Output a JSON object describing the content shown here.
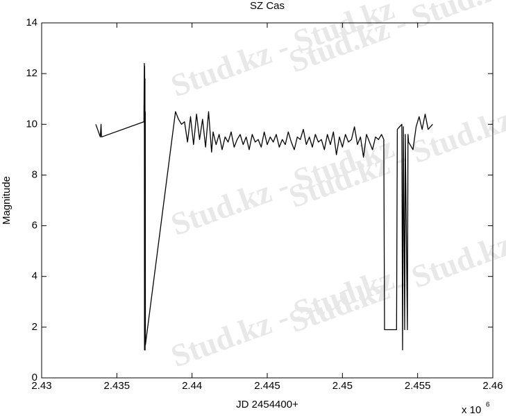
{
  "chart_data": {
    "type": "line",
    "title": "SZ Cas",
    "x_label": "JD 2454400+",
    "y_label": "Magnitude",
    "x_offset_label": "x 10",
    "x_offset_exponent": "6",
    "watermark": "Stud.kz - Stud.kz",
    "xlim": [
      2430000,
      2460000
    ],
    "xticks": [
      {
        "value": 2430000,
        "label": "2.43"
      },
      {
        "value": 2435000,
        "label": "2.435"
      },
      {
        "value": 2440000,
        "label": "2.44"
      },
      {
        "value": 2445000,
        "label": "2.445"
      },
      {
        "value": 2450000,
        "label": "2.45"
      },
      {
        "value": 2455000,
        "label": "2.455"
      },
      {
        "value": 2460000,
        "label": "2.46"
      }
    ],
    "ylim": [
      0,
      14
    ],
    "yticks": [
      0,
      2,
      4,
      6,
      8,
      10,
      12,
      14
    ],
    "grid": false,
    "x": [
      2433600,
      2433900,
      2433950,
      2433980,
      2436800,
      2436830,
      2436840,
      2436850,
      2436860,
      2436870,
      2436880,
      2436890,
      2436900,
      2438900,
      2439100,
      2439300,
      2439500,
      2439700,
      2439900,
      2440100,
      2440300,
      2440500,
      2440700,
      2440900,
      2441100,
      2441300,
      2441400,
      2441600,
      2441800,
      2442000,
      2442200,
      2442400,
      2442600,
      2442800,
      2443000,
      2443200,
      2443400,
      2443600,
      2443800,
      2444000,
      2444200,
      2444400,
      2444600,
      2444800,
      2445000,
      2445200,
      2445400,
      2445600,
      2445800,
      2446000,
      2446200,
      2446400,
      2446600,
      2446800,
      2447000,
      2447200,
      2447400,
      2447600,
      2447800,
      2448000,
      2448200,
      2448400,
      2448600,
      2448800,
      2449000,
      2449200,
      2449400,
      2449600,
      2449800,
      2450000,
      2450200,
      2450400,
      2450600,
      2450800,
      2451000,
      2451200,
      2451400,
      2451600,
      2451800,
      2452000,
      2452200,
      2452400,
      2452600,
      2452750,
      2452800,
      2453600,
      2453650,
      2453950,
      2454000,
      2454050,
      2454140,
      2454180,
      2454320,
      2454360,
      2454400,
      2454690,
      2454900,
      2455100,
      2455300,
      2455500,
      2455700,
      2456000
    ],
    "series": [
      {
        "name": "SZ Cas",
        "color": "#000000",
        "values": [
          10.0,
          9.5,
          10.0,
          9.5,
          10.1,
          12.4,
          1.1,
          12.3,
          1.2,
          11.8,
          1.1,
          10.5,
          1.3,
          10.5,
          10.2,
          10.0,
          10.1,
          9.3,
          10.3,
          9.2,
          10.4,
          9.4,
          10.2,
          9.1,
          10.5,
          8.9,
          9.7,
          9.2,
          9.6,
          9.0,
          9.5,
          9.3,
          9.7,
          9.1,
          9.4,
          9.6,
          9.2,
          9.5,
          9.0,
          9.6,
          9.3,
          9.4,
          9.1,
          9.7,
          9.2,
          9.5,
          9.3,
          9.6,
          9.1,
          9.4,
          9.2,
          9.7,
          9.3,
          9.0,
          9.5,
          9.4,
          9.8,
          9.2,
          9.5,
          9.1,
          9.6,
          9.3,
          9.4,
          9.0,
          9.6,
          9.2,
          9.7,
          8.8,
          9.5,
          9.1,
          9.6,
          9.3,
          9.4,
          9.9,
          9.2,
          9.5,
          8.7,
          9.6,
          9.3,
          9.0,
          9.5,
          9.4,
          9.6,
          9.4,
          1.9,
          1.9,
          9.8,
          10.0,
          1.1,
          9.9,
          1.9,
          9.6,
          1.9,
          9.6,
          9.3,
          9.0,
          9.9,
          10.3,
          9.8,
          10.4,
          9.8,
          10.0
        ]
      }
    ]
  }
}
